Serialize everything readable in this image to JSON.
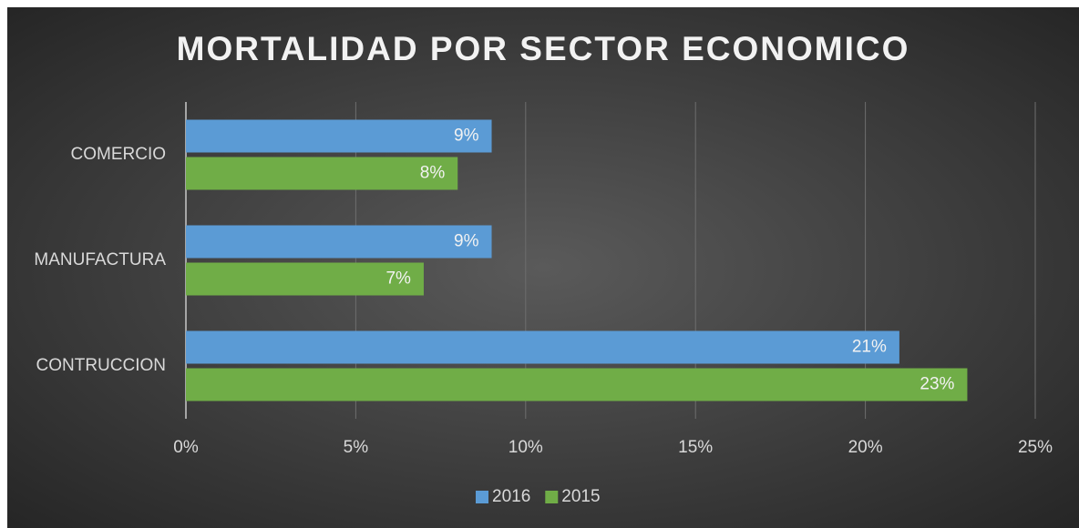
{
  "chart_data": {
    "type": "bar",
    "orientation": "horizontal",
    "title": "MORTALIDAD POR SECTOR ECONOMICO",
    "categories": [
      "COMERCIO",
      "MANUFACTURA",
      "CONTRUCCION"
    ],
    "series": [
      {
        "name": "2016",
        "color": "#5b9bd5",
        "values": [
          9,
          9,
          21
        ],
        "value_labels": [
          "9%",
          "9%",
          "21%"
        ]
      },
      {
        "name": "2015",
        "color": "#70ad47",
        "values": [
          8,
          7,
          23
        ],
        "value_labels": [
          "8%",
          "7%",
          "23%"
        ]
      }
    ],
    "xlim": [
      0,
      25
    ],
    "xticks": [
      {
        "value": 0,
        "label": "0%"
      },
      {
        "value": 5,
        "label": "5%"
      },
      {
        "value": 10,
        "label": "10%"
      },
      {
        "value": 15,
        "label": "15%"
      },
      {
        "value": 20,
        "label": "20%"
      },
      {
        "value": 25,
        "label": "25%"
      }
    ],
    "grid": true,
    "legend": "bottom"
  }
}
